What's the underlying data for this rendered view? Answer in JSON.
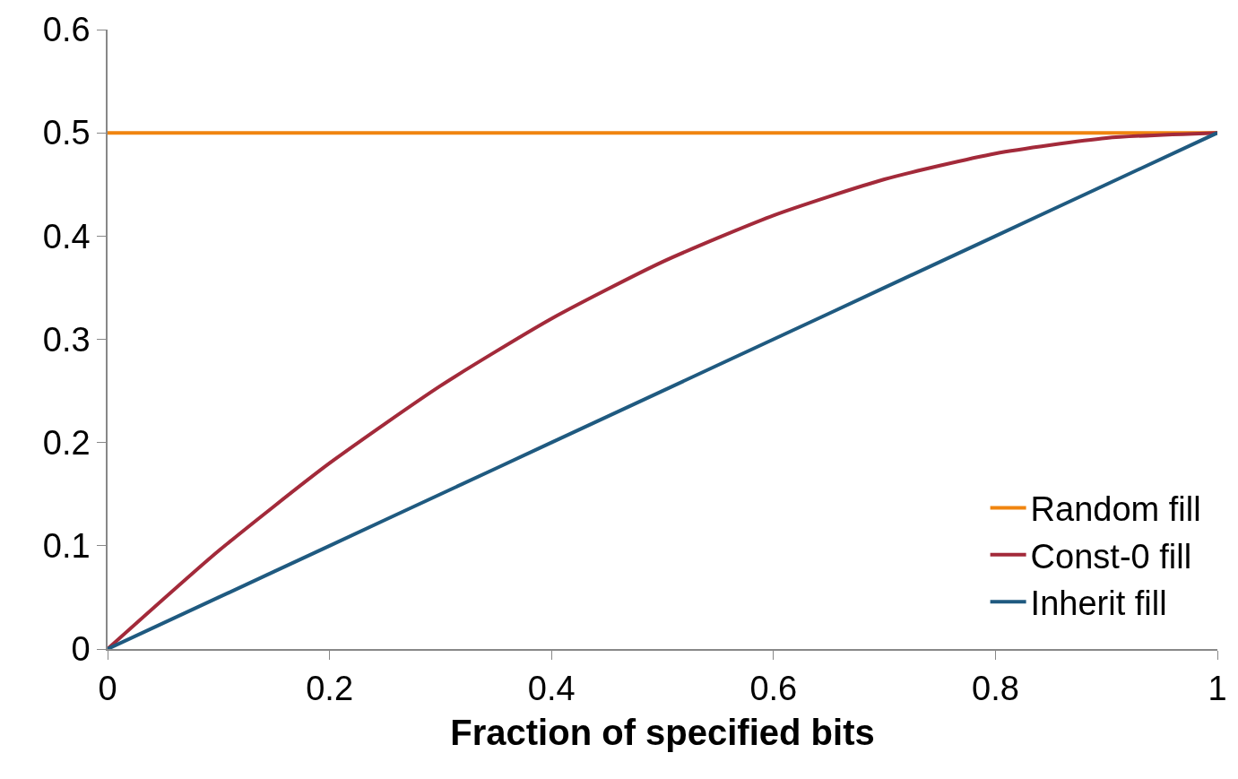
{
  "chart_data": {
    "type": "line",
    "xlabel": "Fraction of specified bits",
    "x": [
      0,
      0.1,
      0.2,
      0.3,
      0.4,
      0.5,
      0.6,
      0.7,
      0.8,
      0.9,
      1
    ],
    "series": [
      {
        "name": "Random fill",
        "color": "#f0850f",
        "values": [
          0.5,
          0.5,
          0.5,
          0.5,
          0.5,
          0.5,
          0.5,
          0.5,
          0.5,
          0.5,
          0.5
        ]
      },
      {
        "name": "Const-0 fill",
        "color": "#a32a3a",
        "values": [
          0,
          0.095,
          0.18,
          0.255,
          0.32,
          0.375,
          0.42,
          0.455,
          0.48,
          0.495,
          0.5
        ]
      },
      {
        "name": "Inherit fill",
        "color": "#1f5a80",
        "values": [
          0,
          0.05,
          0.1,
          0.15,
          0.2,
          0.25,
          0.3,
          0.35,
          0.4,
          0.45,
          0.5
        ]
      }
    ],
    "xlim": [
      0,
      1
    ],
    "xticks": [
      0,
      0.2,
      0.4,
      0.6,
      0.8,
      1
    ],
    "ylim": [
      0,
      0.6
    ],
    "yticks": [
      0,
      0.1,
      0.2,
      0.3,
      0.4,
      0.5,
      0.6
    ],
    "legend": "bottom right",
    "marker": "none",
    "line_style": "solid"
  }
}
